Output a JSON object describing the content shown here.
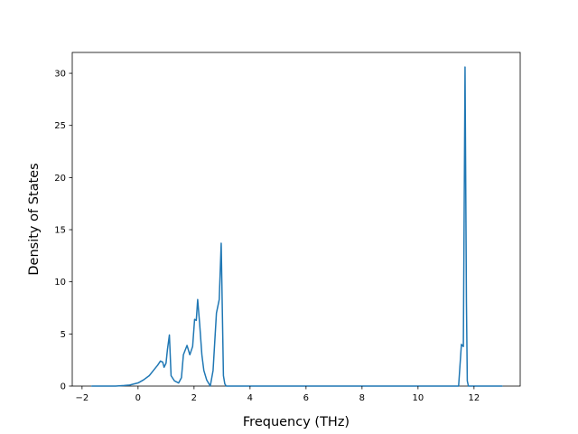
{
  "chart_data": {
    "type": "line",
    "title": "",
    "xlabel": "Frequency (THz)",
    "ylabel": "Density of States",
    "xlim": [
      -2.35,
      13.65
    ],
    "ylim": [
      0,
      32
    ],
    "xticks": [
      -2,
      0,
      2,
      4,
      6,
      8,
      10,
      12
    ],
    "yticks": [
      0,
      5,
      10,
      15,
      20,
      25,
      30
    ],
    "grid": false,
    "legend": "none",
    "series": [
      {
        "color": "#1f77b4",
        "x": [
          -1.65,
          -1.2,
          -0.8,
          -0.5,
          -0.3,
          0.0,
          0.2,
          0.4,
          0.55,
          0.7,
          0.8,
          0.88,
          0.93,
          1.0,
          1.05,
          1.12,
          1.18,
          1.3,
          1.45,
          1.55,
          1.62,
          1.75,
          1.85,
          1.95,
          2.02,
          2.08,
          2.13,
          2.2,
          2.28,
          2.35,
          2.45,
          2.58,
          2.68,
          2.8,
          2.9,
          2.97,
          3.05,
          3.1,
          3.15,
          3.2,
          3.3,
          5.0,
          8.0,
          11.0,
          11.45,
          11.55,
          11.62,
          11.68,
          11.73,
          11.76,
          11.8,
          11.85,
          12.2,
          13.0
        ],
        "y": [
          0,
          0,
          0,
          0.05,
          0.1,
          0.3,
          0.6,
          1.0,
          1.5,
          2.0,
          2.4,
          2.3,
          1.8,
          2.2,
          3.5,
          4.9,
          1.0,
          0.5,
          0.3,
          0.8,
          3.0,
          3.9,
          3.0,
          3.8,
          6.4,
          6.3,
          8.3,
          6.0,
          3.0,
          1.5,
          0.6,
          0.0,
          1.5,
          7.0,
          8.3,
          13.7,
          1.0,
          0.2,
          0.0,
          0.0,
          0.0,
          0.0,
          0.0,
          0.0,
          0.0,
          4.0,
          3.8,
          30.6,
          8.0,
          0.5,
          0.0,
          0.0,
          0.0,
          0.0
        ]
      }
    ]
  }
}
